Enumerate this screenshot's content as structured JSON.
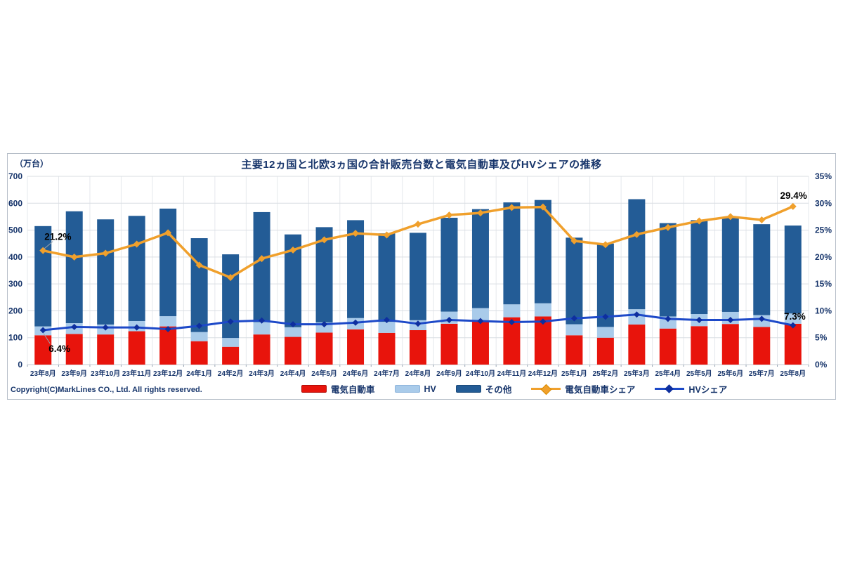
{
  "figure": {
    "unit_label": "（万台）",
    "title": "主要12ヵ国と北欧3ヵ国の合計販売台数と電気自動車及びHVシェアの推移",
    "copyright": "Copyright(C)MarkLines CO., Ltd. All rights reserved."
  },
  "colors": {
    "ev_bar": "#E8140C",
    "hv_bar": "#A9CBEA",
    "other_bar": "#235C96",
    "ev_share_line": "#F0A02C",
    "hv_share_line": "#1D49C8",
    "hv_share_marker": "#0E2F9E",
    "axis_text": "#17356B",
    "annotation_text": "#000000",
    "grid": "#D9DDE2",
    "border": "#B6BEC8"
  },
  "chart_data": {
    "type": "bar",
    "subtype": "stacked-bar-with-lines",
    "title": "主要12ヵ国と北欧3ヵ国の合計販売台数と電気自動車及びHVシェアの推移",
    "categories": [
      "23年8月",
      "23年9月",
      "23年10月",
      "23年11月",
      "23年12月",
      "24年1月",
      "24年2月",
      "24年3月",
      "24年4月",
      "24年5月",
      "24年6月",
      "24年7月",
      "24年8月",
      "24年9月",
      "24年10月",
      "24年11月",
      "24年12月",
      "25年1月",
      "25年2月",
      "25年3月",
      "25年4月",
      "25年5月",
      "25年6月",
      "25年7月",
      "25年8月"
    ],
    "series": [
      {
        "name": "電気自動車",
        "type": "bar",
        "stack": "total",
        "axis": "left",
        "color": "#E8140C",
        "values": [
          109,
          114,
          112,
          124,
          142,
          87,
          66,
          112,
          103,
          119,
          131,
          118,
          128,
          152,
          163,
          176,
          179,
          109,
          100,
          149,
          134,
          143,
          151,
          140,
          152
        ]
      },
      {
        "name": "HV",
        "type": "bar",
        "stack": "total",
        "axis": "left",
        "color": "#A9CBEA",
        "values": [
          33,
          40,
          37,
          38,
          38,
          34,
          33,
          46,
          36,
          38,
          42,
          41,
          37,
          45,
          47,
          48,
          49,
          41,
          40,
          57,
          45,
          45,
          45,
          44,
          38
        ]
      },
      {
        "name": "その他",
        "type": "bar",
        "stack": "total",
        "axis": "left",
        "color": "#235C96",
        "values": [
          373,
          416,
          391,
          391,
          400,
          349,
          311,
          409,
          345,
          354,
          364,
          329,
          325,
          349,
          368,
          379,
          384,
          322,
          310,
          409,
          347,
          349,
          352,
          338,
          327
        ]
      },
      {
        "name": "電気自動車シェア",
        "type": "line",
        "axis": "right",
        "color": "#F0A02C",
        "marker": "#F0A02C",
        "values": [
          21.2,
          20.0,
          20.7,
          22.4,
          24.5,
          18.5,
          16.2,
          19.7,
          21.3,
          23.2,
          24.4,
          24.1,
          26.1,
          27.8,
          28.2,
          29.2,
          29.3,
          23.0,
          22.3,
          24.2,
          25.5,
          26.7,
          27.5,
          26.9,
          29.4
        ]
      },
      {
        "name": "HVシェア",
        "type": "line",
        "axis": "right",
        "color": "#1D49C8",
        "marker": "#0E2F9E",
        "values": [
          6.4,
          7.0,
          6.9,
          6.9,
          6.6,
          7.2,
          8.0,
          8.2,
          7.5,
          7.5,
          7.8,
          8.3,
          7.6,
          8.3,
          8.1,
          7.9,
          8.0,
          8.6,
          8.9,
          9.3,
          8.5,
          8.3,
          8.3,
          8.5,
          7.3
        ]
      }
    ],
    "totals": [
      515,
      570,
      540,
      553,
      580,
      470,
      410,
      567,
      484,
      511,
      537,
      488,
      490,
      546,
      578,
      603,
      612,
      472,
      450,
      615,
      526,
      537,
      548,
      522,
      517
    ],
    "left_axis": {
      "label": "（万台）",
      "min": 0,
      "max": 700,
      "step": 100,
      "ticks": [
        "0",
        "100",
        "200",
        "300",
        "400",
        "500",
        "600",
        "700"
      ]
    },
    "right_axis": {
      "min": 0,
      "max": 35,
      "step": 5,
      "suffix": "%",
      "ticks": [
        "0%",
        "5%",
        "10%",
        "15%",
        "20%",
        "25%",
        "30%",
        "35%"
      ]
    },
    "annotations": [
      {
        "text": "21.2%",
        "series": "電気自動車シェア",
        "point": 0
      },
      {
        "text": "6.4%",
        "series": "HVシェア",
        "point": 0
      },
      {
        "text": "29.4%",
        "series": "電気自動車シェア",
        "point": 24
      },
      {
        "text": "7.3%",
        "series": "HVシェア",
        "point": 24
      }
    ],
    "legend_position": "bottom",
    "grid": true
  }
}
